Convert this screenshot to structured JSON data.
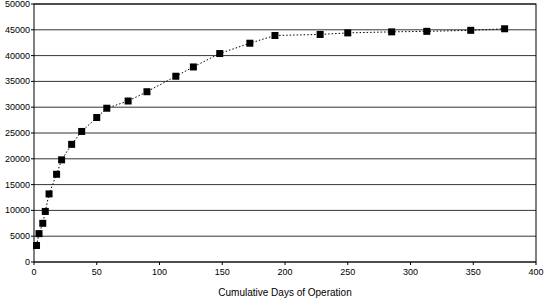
{
  "chart_data": {
    "type": "line",
    "x_label": "Cumulative Days of Operation",
    "x": [
      2,
      4,
      7,
      9,
      12,
      18,
      22,
      30,
      38,
      50,
      58,
      75,
      90,
      113,
      127,
      148,
      172,
      192,
      228,
      250,
      285,
      313,
      348,
      375
    ],
    "values": [
      3200,
      5500,
      7500,
      9800,
      13200,
      17000,
      19800,
      22800,
      25300,
      28000,
      29800,
      31200,
      33000,
      36000,
      37800,
      40400,
      42400,
      43900,
      44100,
      44400,
      44600,
      44700,
      44900,
      45200
    ],
    "color": "#000000",
    "marker": "square",
    "line_style": "dotted",
    "xlim": [
      0,
      400
    ],
    "xticks": [
      0,
      50,
      100,
      150,
      200,
      250,
      300,
      350,
      400
    ],
    "ylim": [
      0,
      50000
    ],
    "yticks": [
      0,
      5000,
      10000,
      15000,
      20000,
      25000,
      30000,
      35000,
      40000,
      45000,
      50000
    ],
    "grid": true
  }
}
